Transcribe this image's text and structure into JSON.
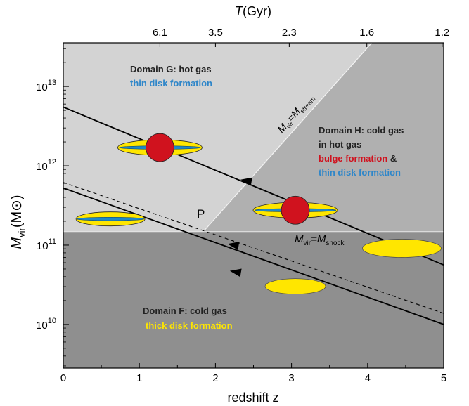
{
  "chart_data": {
    "type": "line",
    "xlabel": "redshift z",
    "ylabel": "M",
    "ylabel_sub": "vir",
    "ylabel_unit": "(M⊙)",
    "top_axis_title": "T",
    "top_axis_unit": "(Gyr)",
    "xlim": [
      0,
      5
    ],
    "ylim_log10": [
      9.45,
      13.55
    ],
    "x_ticks": [
      "0",
      "1",
      "2",
      "3",
      "4",
      "5"
    ],
    "y_ticks": [
      {
        "mantissa": "10",
        "exp": "10",
        "log10": 10
      },
      {
        "mantissa": "10",
        "exp": "11",
        "log10": 11
      },
      {
        "mantissa": "10",
        "exp": "12",
        "log10": 12
      },
      {
        "mantissa": "10",
        "exp": "13",
        "log10": 13
      }
    ],
    "top_ticks": [
      {
        "label": "6.1",
        "z": 1.27
      },
      {
        "label": "3.5",
        "z": 2.0
      },
      {
        "label": "2.3",
        "z": 2.97
      },
      {
        "label": "1.6",
        "z": 3.99
      },
      {
        "label": "1.2",
        "z": 4.98
      }
    ],
    "region_colors": {
      "domain_g": "#d3d3d3",
      "domain_h": "#b0b0b0",
      "domain_f": "#8f8f8f"
    },
    "boundaries": {
      "m_shock_log10": 11.17,
      "m_stream_line": [
        [
          1.84,
          11.17
        ],
        [
          3.99,
          13.48
        ]
      ],
      "point_P": [
        1.84,
        11.17
      ]
    },
    "tracks": [
      {
        "style": "solid",
        "points": [
          [
            0,
            11.72
          ],
          [
            5,
            10.0
          ]
        ]
      },
      {
        "style": "dashed",
        "points": [
          [
            0,
            11.79
          ],
          [
            5,
            10.14
          ]
        ]
      },
      {
        "style": "solid",
        "points": [
          [
            0,
            12.74
          ],
          [
            5,
            10.75
          ]
        ]
      }
    ],
    "arrows": [
      {
        "z": 2.28,
        "log10": 10.66
      },
      {
        "z": 2.25,
        "log10": 11.0
      },
      {
        "z": 2.42,
        "log10": 11.81
      }
    ],
    "galaxies": [
      {
        "z": 1.27,
        "log10": 12.23,
        "kind": "bulge+thin"
      },
      {
        "z": 3.05,
        "log10": 11.44,
        "kind": "bulge+thin"
      },
      {
        "z": 0.62,
        "log10": 11.33,
        "kind": "thin-in-thick"
      },
      {
        "z": 4.45,
        "log10": 10.96,
        "kind": "thick"
      },
      {
        "z": 3.05,
        "log10": 10.48,
        "kind": "thick"
      }
    ],
    "galaxy_colors": {
      "thick_disk": "#ffe600",
      "thin_disk": "#1e88c8",
      "bulge": "#d0121e"
    },
    "annotations": {
      "p_label": "P",
      "stream_label": {
        "m": "M",
        "sub1": "vir",
        "eq": "=M",
        "sub2": "stream"
      },
      "shock_label": {
        "m": "M",
        "sub1": "vir",
        "eq": "=M",
        "sub2": "shock"
      }
    },
    "domains": {
      "g": {
        "title": "Domain G: hot gas",
        "line2": "thin disk formation"
      },
      "h": {
        "title": "Domain H: cold gas",
        "line2": "in hot gas",
        "line3a": "bulge formation",
        "line3b": " &",
        "line4": "thin disk formation"
      },
      "f": {
        "title": "Domain F: cold gas",
        "line2": "thick disk formation"
      }
    }
  }
}
